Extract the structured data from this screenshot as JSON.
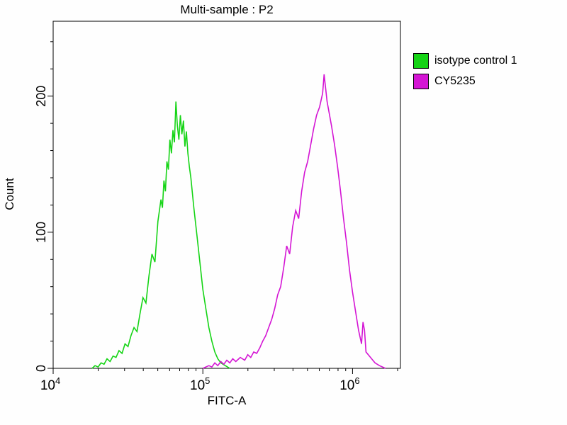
{
  "title": "Multi-sample : P2",
  "legend": {
    "items": [
      {
        "label": "isotype control 1",
        "color": "#15d415"
      },
      {
        "label": "CY5235",
        "color": "#d415d4"
      }
    ]
  },
  "chart_data": {
    "type": "line",
    "subtype": "flow-cytometry-histogram",
    "title": "Multi-sample : P2",
    "xlabel": "FITC-A",
    "ylabel": "Count",
    "x_scale": "log10",
    "xlog_range": [
      4,
      6.32
    ],
    "ylim": [
      0,
      255
    ],
    "x_major_ticks": [
      {
        "exp": 4,
        "label": "10",
        "sup": "4"
      },
      {
        "exp": 5,
        "label": "10",
        "sup": "5"
      },
      {
        "exp": 6,
        "label": "10",
        "sup": "6"
      }
    ],
    "y_major_ticks": [
      0,
      100,
      200
    ],
    "y_minor_step": 20,
    "grid": false,
    "legend_position": "right",
    "series": [
      {
        "name": "isotype control 1",
        "color": "#15d415",
        "peak_x": 66000,
        "peak_count": 196,
        "points": [
          [
            4.26,
            0
          ],
          [
            4.28,
            2
          ],
          [
            4.3,
            1
          ],
          [
            4.32,
            4
          ],
          [
            4.34,
            3
          ],
          [
            4.36,
            7
          ],
          [
            4.38,
            5
          ],
          [
            4.4,
            9
          ],
          [
            4.42,
            8
          ],
          [
            4.44,
            13
          ],
          [
            4.46,
            11
          ],
          [
            4.48,
            18
          ],
          [
            4.5,
            16
          ],
          [
            4.52,
            24
          ],
          [
            4.54,
            30
          ],
          [
            4.56,
            27
          ],
          [
            4.58,
            40
          ],
          [
            4.6,
            52
          ],
          [
            4.62,
            48
          ],
          [
            4.64,
            68
          ],
          [
            4.66,
            84
          ],
          [
            4.68,
            78
          ],
          [
            4.7,
            108
          ],
          [
            4.72,
            124
          ],
          [
            4.73,
            118
          ],
          [
            4.74,
            138
          ],
          [
            4.75,
            130
          ],
          [
            4.76,
            152
          ],
          [
            4.77,
            146
          ],
          [
            4.78,
            168
          ],
          [
            4.79,
            158
          ],
          [
            4.8,
            175
          ],
          [
            4.81,
            166
          ],
          [
            4.82,
            196
          ],
          [
            4.83,
            178
          ],
          [
            4.84,
            168
          ],
          [
            4.85,
            186
          ],
          [
            4.86,
            172
          ],
          [
            4.87,
            182
          ],
          [
            4.88,
            163
          ],
          [
            4.89,
            174
          ],
          [
            4.9,
            158
          ],
          [
            4.91,
            148
          ],
          [
            4.92,
            140
          ],
          [
            4.94,
            118
          ],
          [
            4.96,
            98
          ],
          [
            4.98,
            78
          ],
          [
            5.0,
            58
          ],
          [
            5.02,
            44
          ],
          [
            5.04,
            30
          ],
          [
            5.06,
            20
          ],
          [
            5.08,
            12
          ],
          [
            5.1,
            7
          ],
          [
            5.12,
            4
          ],
          [
            5.15,
            2
          ],
          [
            5.18,
            0
          ]
        ]
      },
      {
        "name": "CY5235",
        "color": "#d415d4",
        "peak_x": 650000,
        "peak_count": 216,
        "points": [
          [
            5.0,
            0
          ],
          [
            5.04,
            2
          ],
          [
            5.06,
            1
          ],
          [
            5.08,
            4
          ],
          [
            5.1,
            2
          ],
          [
            5.12,
            5
          ],
          [
            5.14,
            3
          ],
          [
            5.16,
            6
          ],
          [
            5.18,
            4
          ],
          [
            5.2,
            7
          ],
          [
            5.22,
            5
          ],
          [
            5.25,
            8
          ],
          [
            5.28,
            6
          ],
          [
            5.3,
            10
          ],
          [
            5.32,
            8
          ],
          [
            5.34,
            12
          ],
          [
            5.36,
            11
          ],
          [
            5.38,
            15
          ],
          [
            5.4,
            20
          ],
          [
            5.42,
            24
          ],
          [
            5.44,
            30
          ],
          [
            5.46,
            36
          ],
          [
            5.48,
            44
          ],
          [
            5.5,
            54
          ],
          [
            5.52,
            60
          ],
          [
            5.54,
            74
          ],
          [
            5.56,
            90
          ],
          [
            5.58,
            84
          ],
          [
            5.6,
            104
          ],
          [
            5.62,
            116
          ],
          [
            5.64,
            110
          ],
          [
            5.66,
            130
          ],
          [
            5.68,
            144
          ],
          [
            5.7,
            152
          ],
          [
            5.72,
            164
          ],
          [
            5.74,
            176
          ],
          [
            5.76,
            186
          ],
          [
            5.78,
            192
          ],
          [
            5.8,
            202
          ],
          [
            5.81,
            216
          ],
          [
            5.82,
            206
          ],
          [
            5.83,
            196
          ],
          [
            5.84,
            190
          ],
          [
            5.86,
            178
          ],
          [
            5.88,
            164
          ],
          [
            5.9,
            148
          ],
          [
            5.92,
            130
          ],
          [
            5.94,
            110
          ],
          [
            5.96,
            92
          ],
          [
            5.98,
            72
          ],
          [
            6.0,
            56
          ],
          [
            6.02,
            42
          ],
          [
            6.04,
            28
          ],
          [
            6.06,
            18
          ],
          [
            6.07,
            34
          ],
          [
            6.08,
            28
          ],
          [
            6.09,
            12
          ],
          [
            6.12,
            8
          ],
          [
            6.15,
            4
          ],
          [
            6.18,
            2
          ],
          [
            6.22,
            0
          ]
        ]
      }
    ]
  }
}
